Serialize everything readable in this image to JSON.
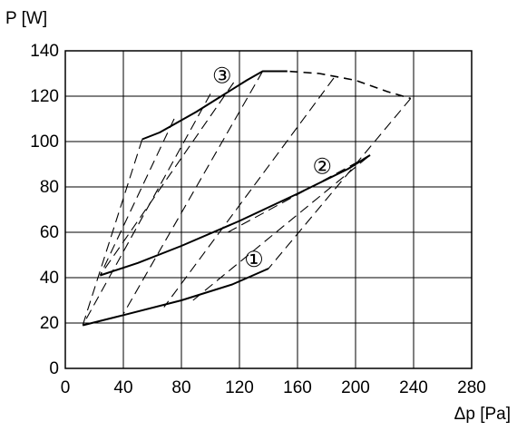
{
  "chart_data": {
    "type": "line",
    "xlabel": "Δp [Pa]",
    "ylabel": "P [W]",
    "xlim": [
      0,
      280
    ],
    "ylim": [
      0,
      140
    ],
    "xticks": [
      0,
      40,
      80,
      120,
      160,
      200,
      240,
      280
    ],
    "yticks": [
      0,
      20,
      40,
      60,
      80,
      100,
      120,
      140
    ],
    "grid": true,
    "colors": {
      "line": "#000000",
      "grid": "#000000",
      "background": "#ffffff"
    },
    "series": [
      {
        "name": "①",
        "style": "solid",
        "points": [
          [
            12,
            19
          ],
          [
            40,
            23.5
          ],
          [
            80,
            30
          ],
          [
            115,
            37
          ],
          [
            140,
            44
          ]
        ]
      },
      {
        "name": "②",
        "style": "solid",
        "points": [
          [
            24,
            41
          ],
          [
            50,
            46.5
          ],
          [
            80,
            54
          ],
          [
            120,
            65
          ],
          [
            160,
            77
          ],
          [
            195,
            88
          ],
          [
            210,
            94
          ]
        ]
      },
      {
        "name": "③",
        "style": "solid",
        "points": [
          [
            53,
            101
          ],
          [
            65,
            104
          ],
          [
            90,
            113
          ],
          [
            110,
            121
          ],
          [
            125,
            127
          ],
          [
            136,
            131
          ],
          [
            153,
            131
          ]
        ]
      },
      {
        "name": "",
        "style": "dashed",
        "points": [
          [
            136,
            131
          ],
          [
            153,
            131
          ],
          [
            175,
            130
          ],
          [
            200,
            127
          ],
          [
            222,
            122
          ],
          [
            238,
            119
          ]
        ]
      }
    ],
    "dashed_lines": [
      {
        "points": [
          [
            53,
            101
          ],
          [
            12,
            19
          ]
        ]
      },
      {
        "points": [
          [
            75,
            110
          ],
          [
            24,
            41
          ]
        ]
      },
      {
        "points": [
          [
            100,
            121
          ],
          [
            12,
            19
          ]
        ]
      },
      {
        "points": [
          [
            116,
            126
          ],
          [
            24,
            41
          ]
        ]
      },
      {
        "points": [
          [
            136,
            131
          ],
          [
            40,
            24
          ]
        ]
      },
      {
        "points": [
          [
            185,
            128
          ],
          [
            68,
            27
          ]
        ]
      },
      {
        "points": [
          [
            238,
            119
          ],
          [
            140,
            44
          ]
        ]
      },
      {
        "points": [
          [
            88,
            30
          ],
          [
            210,
            94
          ]
        ]
      },
      {
        "points": [
          [
            112,
            60
          ],
          [
            210,
            94
          ]
        ]
      }
    ],
    "curve_labels": [
      {
        "text": "①",
        "x": 130,
        "y": 48
      },
      {
        "text": "②",
        "x": 177,
        "y": 89
      },
      {
        "text": "③",
        "x": 108,
        "y": 129
      }
    ]
  }
}
